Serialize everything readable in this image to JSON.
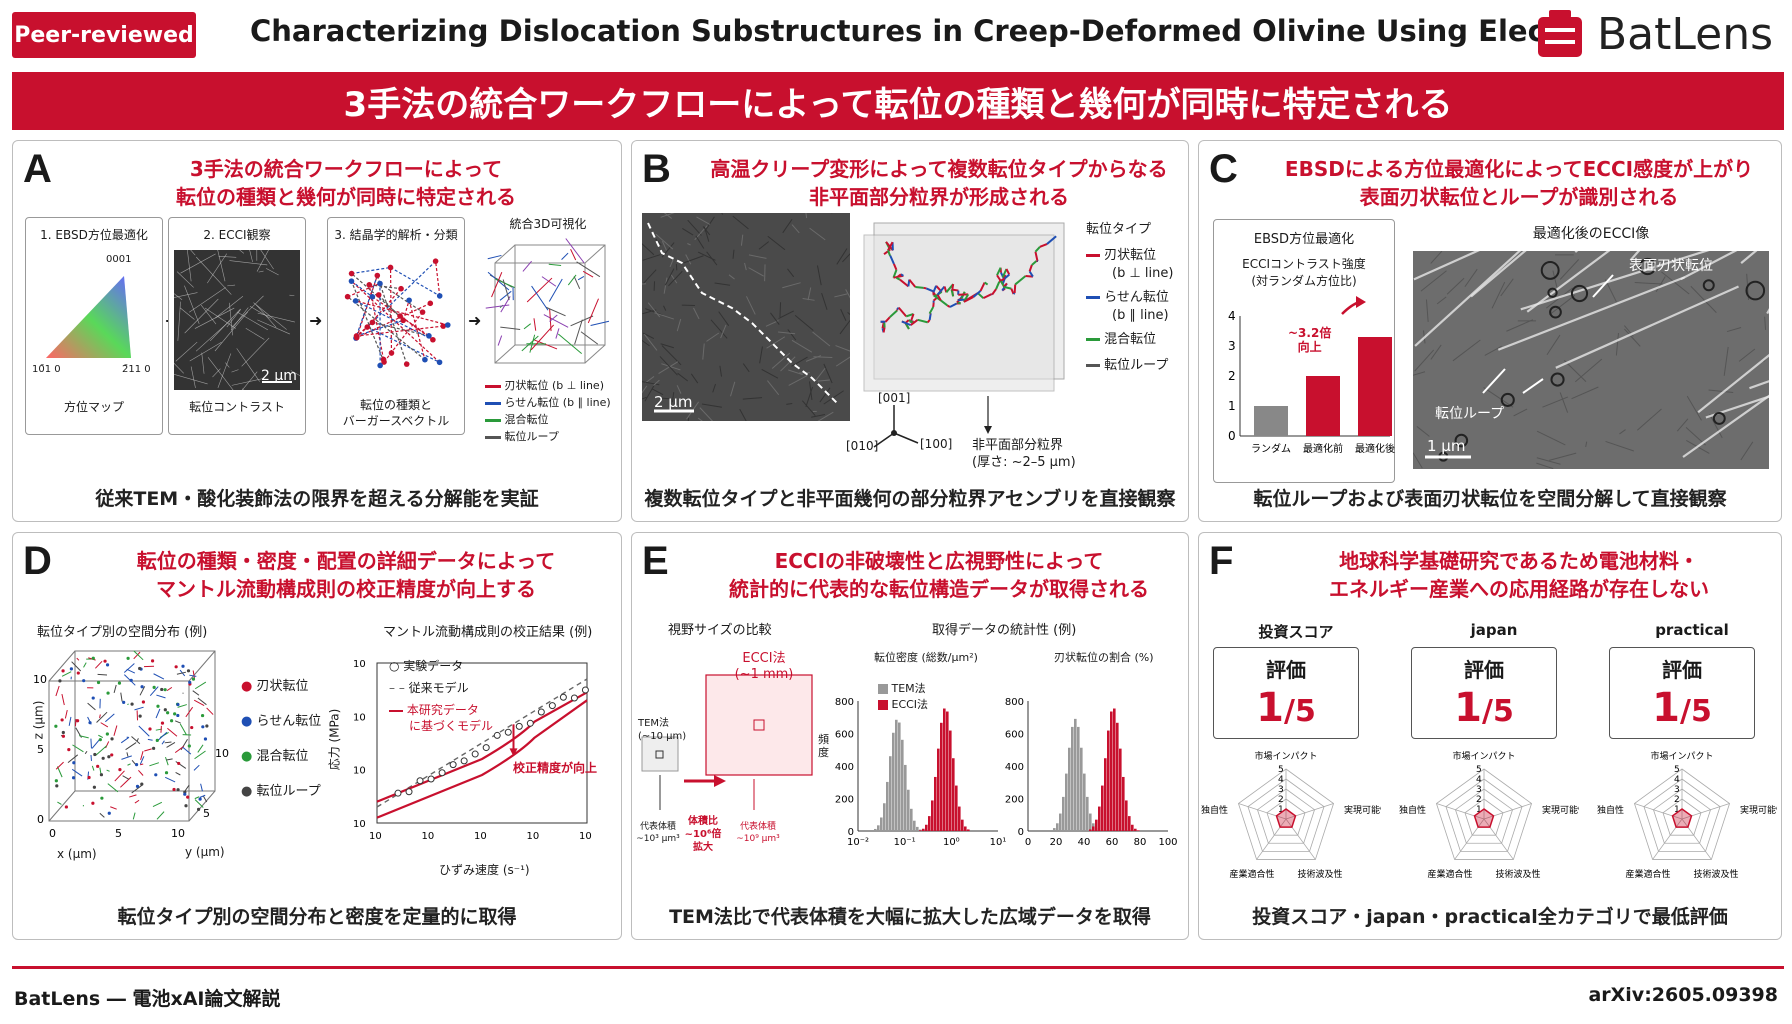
{
  "header": {
    "badge": "Peer-reviewed",
    "title": "Characterizing Dislocation Substructures in Creep-Deformed Olivine Using Electron Channeli",
    "logo": "BatLens"
  },
  "banner": "3手法の統合ワークフローによって転位の種類と幾何が同時に特定される",
  "panelA": {
    "letter": "A",
    "head1": "3手法の統合ワークフローによって",
    "head2": "転位の種類と幾何が同時に特定される",
    "step1": "1. EBSD方位最適化",
    "step2": "2. ECCI観察",
    "step3": "3. 結晶学的解析・分類",
    "step4": "統合3D可視化",
    "tri_top": "0001",
    "tri_left": "10̄1 0",
    "tri_right": "2̄11 0",
    "cap1": "方位マップ",
    "cap2": "転位コントラスト",
    "cap3a": "転位の種類と",
    "cap3b": "バーガースベクトル",
    "scale": "2 μm",
    "legend": [
      "刃状転位 (b ⊥ line)",
      "らせん転位 (b ∥ line)",
      "混合転位",
      "転位ループ"
    ],
    "foot": "従来TEM・酸化装飾法の限界を超える分解能を実証"
  },
  "panelB": {
    "letter": "B",
    "head1": "高温クリープ変形によって複数転位タイプからなる",
    "head2": "非平面部分粒界が形成される",
    "scale": "2 μm",
    "legend_title": "転位タイプ",
    "legend": [
      "刃状転位",
      "(b ⊥ line)",
      "らせん転位",
      "(b ∥ line)",
      "混合転位",
      "転位ループ"
    ],
    "axis001": "[001]",
    "axis010": "[010]",
    "axis100": "[100]",
    "ann1": "非平面部分粒界",
    "ann2": "(厚さ: ~2–5 μm)",
    "foot": "複数転位タイプと非平面幾何の部分粒界アセンブリを直接観察"
  },
  "panelC": {
    "letter": "C",
    "head1": "EBSDによる方位最適化によってECCI感度が上がり",
    "head2": "表面刃状転位とループが識別される",
    "chart_title": "EBSD方位最適化",
    "chart_sub1": "ECCIコントラスト強度",
    "chart_sub2": "(対ランダム方位比)",
    "ann1": "~3.2倍",
    "ann2": "向上",
    "img_title": "最適化後のECCI像",
    "img_lab1": "表面刃状転位",
    "img_lab2": "転位ループ",
    "scale": "1 μm",
    "foot": "転位ループおよび表面刃状転位を空間分解して直接観察"
  },
  "panelD": {
    "letter": "D",
    "head1": "転位の種類・密度・配置の詳細データによって",
    "head2": "マントル流動構成則の校正精度が向上する",
    "sub1": "転位タイプ別の空間分布 (例)",
    "sub2": "マントル流動構成則の校正結果 (例)",
    "legend3d": [
      "刃状転位",
      "らせん転位",
      "混合転位",
      "転位ループ"
    ],
    "zlab": "z (μm)",
    "xlab": "x (μm)",
    "ylab": "y (μm)",
    "leg2": [
      "実験データ",
      "従来モデル",
      "本研究データ",
      "に基づくモデル"
    ],
    "ann": "校正精度が向上",
    "ylab2": "応力 (MPa)",
    "xlab2": "ひずみ速度 (s⁻¹)",
    "foot": "転位タイプ別の空間分布と密度を定量的に取得"
  },
  "panelE": {
    "letter": "E",
    "head1": "ECCIの非破壊性と広視野性によって",
    "head2": "統計的に代表的な転位構造データが取得される",
    "sub1": "視野サイズの比較",
    "sub2": "取得データの統計性 (例)",
    "tem1": "TEM法",
    "tem2": "(~10 μm)",
    "ecci1": "ECCI法",
    "ecci2": "(~1 mm)",
    "rv1": "代表体積",
    "rv2": "~10³ μm³",
    "ratio1": "体積比",
    "ratio2": "~10⁶倍",
    "ratio3": "拡大",
    "rv3": "代表体積",
    "rv4": "~10⁹ μm³",
    "h1title": "転位密度 (総数/μm²)",
    "h2title": "刃状転位の割合 (%)",
    "ylab": "頻度",
    "leg": [
      "TEM法",
      "ECCI法"
    ],
    "foot": "TEM法比で代表体積を大幅に拡大した広域データを取得"
  },
  "panelF": {
    "letter": "F",
    "head1": "地球科学基礎研究であるため電池材料・",
    "head2": "エネルギー産業への応用経路が存在しない",
    "scores": [
      {
        "title": "投資スコア",
        "label": "評価",
        "value": "1",
        "denom": "/5"
      },
      {
        "title": "japan",
        "label": "評価",
        "value": "1",
        "denom": "/5"
      },
      {
        "title": "practical",
        "label": "評価",
        "value": "1",
        "denom": "/5"
      }
    ],
    "radar_axes": [
      "市場インパクト",
      "実現可能性",
      "技術波及性",
      "産業適合性",
      "独自性"
    ],
    "foot": "投資スコア・japan・practical全カテゴリで最低評価"
  },
  "chart_data": [
    {
      "type": "bar",
      "categories": [
        "ランダム",
        "最適化前",
        "最適化後"
      ],
      "values": [
        1.0,
        2.0,
        3.3
      ],
      "ylim": [
        0,
        4
      ],
      "colors": [
        "#888888",
        "#c8102e",
        "#c8102e"
      ]
    },
    {
      "type": "line",
      "x_log_range": [
        -7,
        -3
      ],
      "y_log_range": [
        0,
        3
      ],
      "series": [
        {
          "name": "実験データ"
        },
        {
          "name": "従来モデル"
        },
        {
          "name": "本研究データに基づくモデル"
        }
      ]
    },
    {
      "type": "bar",
      "title": "転位密度 (総数/μm²)",
      "series": [
        {
          "name": "TEM法"
        },
        {
          "name": "ECCI法"
        }
      ],
      "ylim": [
        0,
        800
      ]
    },
    {
      "type": "bar",
      "title": "刃状転位の割合 (%)",
      "series": [
        {
          "name": "TEM法"
        },
        {
          "name": "ECCI法"
        }
      ],
      "ylim": [
        0,
        800
      ]
    },
    {
      "type": "radar",
      "axes": [
        "市場インパクト",
        "実現可能性",
        "技術波及性",
        "産業適合性",
        "独自性"
      ],
      "values": [
        1,
        1,
        1,
        1,
        1
      ],
      "range": [
        0,
        5
      ]
    }
  ],
  "footer": {
    "left": "BatLens ― 電池xAI論文解説",
    "right": "arXiv:2605.09398"
  }
}
